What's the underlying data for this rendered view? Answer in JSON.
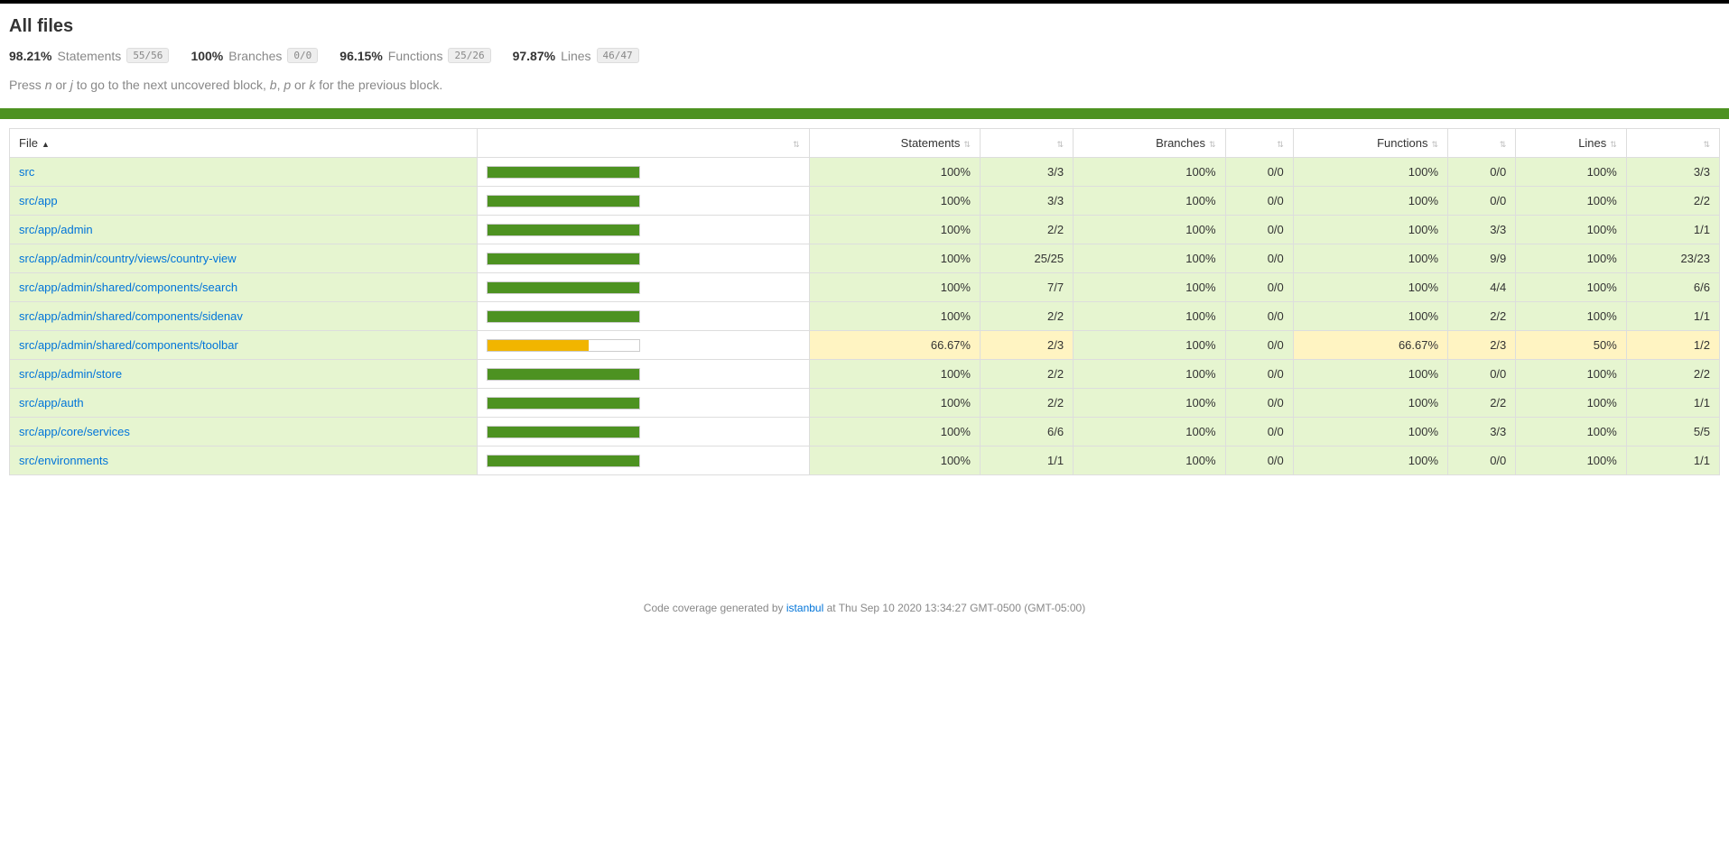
{
  "page": {
    "title": "All files",
    "hint_before": "Press ",
    "hint_k1": "n",
    "hint_mid1": " or ",
    "hint_k2": "j",
    "hint_mid2": " to go to the next uncovered block, ",
    "hint_k3": "b",
    "hint_mid3": ", ",
    "hint_k4": "p",
    "hint_mid4": " or ",
    "hint_k5": "k",
    "hint_after": " for the previous block."
  },
  "colors": {
    "band_high": "#4d9221",
    "bar_high": "#4d9221",
    "bar_medium": "#f1b500"
  },
  "summary": {
    "statements": {
      "pct": "98.21%",
      "label": "Statements",
      "frac": "55/56"
    },
    "branches": {
      "pct": "100%",
      "label": "Branches",
      "frac": "0/0"
    },
    "functions": {
      "pct": "96.15%",
      "label": "Functions",
      "frac": "25/26"
    },
    "lines": {
      "pct": "97.87%",
      "label": "Lines",
      "frac": "46/47"
    }
  },
  "columns": {
    "file": "File",
    "statements": "Statements",
    "branches": "Branches",
    "functions": "Functions",
    "lines": "Lines"
  },
  "rows": [
    {
      "file": "src",
      "level": "high",
      "bar_pct": 100,
      "stmt_pct": "100%",
      "stmt_frac": "3/3",
      "br_pct": "100%",
      "br_frac": "0/0",
      "fn_pct": "100%",
      "fn_frac": "0/0",
      "ln_pct": "100%",
      "ln_frac": "3/3"
    },
    {
      "file": "src/app",
      "level": "high",
      "bar_pct": 100,
      "stmt_pct": "100%",
      "stmt_frac": "3/3",
      "br_pct": "100%",
      "br_frac": "0/0",
      "fn_pct": "100%",
      "fn_frac": "0/0",
      "ln_pct": "100%",
      "ln_frac": "2/2"
    },
    {
      "file": "src/app/admin",
      "level": "high",
      "bar_pct": 100,
      "stmt_pct": "100%",
      "stmt_frac": "2/2",
      "br_pct": "100%",
      "br_frac": "0/0",
      "fn_pct": "100%",
      "fn_frac": "3/3",
      "ln_pct": "100%",
      "ln_frac": "1/1"
    },
    {
      "file": "src/app/admin/country/views/country-view",
      "level": "high",
      "bar_pct": 100,
      "stmt_pct": "100%",
      "stmt_frac": "25/25",
      "br_pct": "100%",
      "br_frac": "0/0",
      "fn_pct": "100%",
      "fn_frac": "9/9",
      "ln_pct": "100%",
      "ln_frac": "23/23"
    },
    {
      "file": "src/app/admin/shared/components/search",
      "level": "high",
      "bar_pct": 100,
      "stmt_pct": "100%",
      "stmt_frac": "7/7",
      "br_pct": "100%",
      "br_frac": "0/0",
      "fn_pct": "100%",
      "fn_frac": "4/4",
      "ln_pct": "100%",
      "ln_frac": "6/6"
    },
    {
      "file": "src/app/admin/shared/components/sidenav",
      "level": "high",
      "bar_pct": 100,
      "stmt_pct": "100%",
      "stmt_frac": "2/2",
      "br_pct": "100%",
      "br_frac": "0/0",
      "fn_pct": "100%",
      "fn_frac": "2/2",
      "ln_pct": "100%",
      "ln_frac": "1/1"
    },
    {
      "file": "src/app/admin/shared/components/toolbar",
      "level": "medium",
      "bar_pct": 66.67,
      "stmt_pct": "66.67%",
      "stmt_frac": "2/3",
      "br_pct": "100%",
      "br_frac": "0/0",
      "fn_pct": "66.67%",
      "fn_frac": "2/3",
      "ln_pct": "50%",
      "ln_frac": "1/2"
    },
    {
      "file": "src/app/admin/store",
      "level": "high",
      "bar_pct": 100,
      "stmt_pct": "100%",
      "stmt_frac": "2/2",
      "br_pct": "100%",
      "br_frac": "0/0",
      "fn_pct": "100%",
      "fn_frac": "0/0",
      "ln_pct": "100%",
      "ln_frac": "2/2"
    },
    {
      "file": "src/app/auth",
      "level": "high",
      "bar_pct": 100,
      "stmt_pct": "100%",
      "stmt_frac": "2/2",
      "br_pct": "100%",
      "br_frac": "0/0",
      "fn_pct": "100%",
      "fn_frac": "2/2",
      "ln_pct": "100%",
      "ln_frac": "1/1"
    },
    {
      "file": "src/app/core/services",
      "level": "high",
      "bar_pct": 100,
      "stmt_pct": "100%",
      "stmt_frac": "6/6",
      "br_pct": "100%",
      "br_frac": "0/0",
      "fn_pct": "100%",
      "fn_frac": "3/3",
      "ln_pct": "100%",
      "ln_frac": "5/5"
    },
    {
      "file": "src/environments",
      "level": "high",
      "bar_pct": 100,
      "stmt_pct": "100%",
      "stmt_frac": "1/1",
      "br_pct": "100%",
      "br_frac": "0/0",
      "fn_pct": "100%",
      "fn_frac": "0/0",
      "ln_pct": "100%",
      "ln_frac": "1/1"
    }
  ],
  "footer": {
    "prefix": "Code coverage generated by ",
    "link": "istanbul",
    "suffix": " at Thu Sep 10 2020 13:34:27 GMT-0500 (GMT-05:00)"
  }
}
